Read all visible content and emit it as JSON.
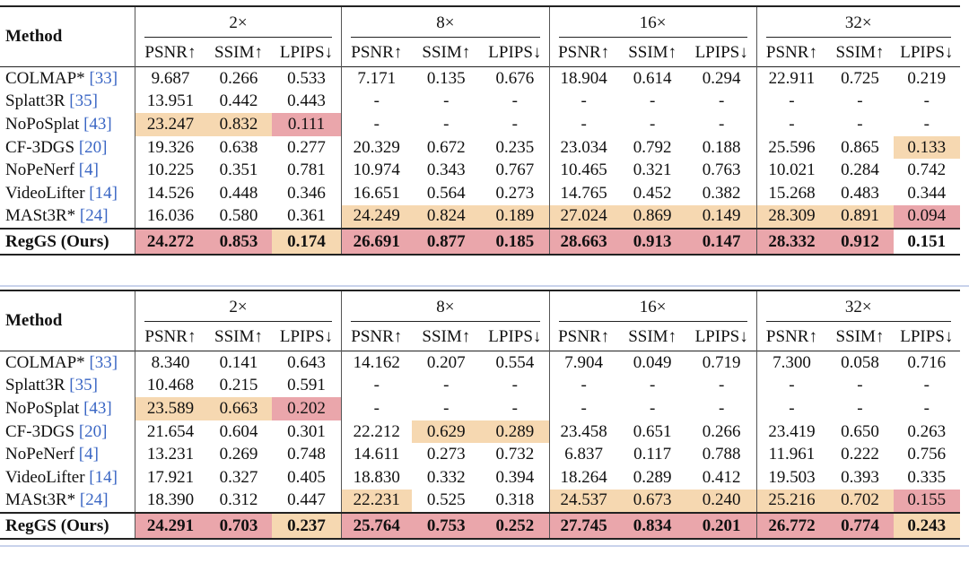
{
  "tables": [
    {
      "method_header": "Method",
      "scales": [
        "2×",
        "8×",
        "16×",
        "32×"
      ],
      "metrics": [
        "PSNR↑",
        "SSIM↑",
        "LPIPS↓"
      ],
      "rows": [
        {
          "name": "COLMAP* ",
          "cite": "[33]",
          "values": [
            "9.687",
            "0.266",
            "0.533",
            "7.171",
            "0.135",
            "0.676",
            "18.904",
            "0.614",
            "0.294",
            "22.911",
            "0.725",
            "0.219"
          ],
          "hl": [
            "",
            "",
            "",
            "",
            "",
            "",
            "",
            "",
            "",
            "",
            "",
            ""
          ]
        },
        {
          "name": "Splatt3R ",
          "cite": "[35]",
          "values": [
            "13.951",
            "0.442",
            "0.443",
            "-",
            "-",
            "-",
            "-",
            "-",
            "-",
            "-",
            "-",
            "-"
          ],
          "hl": [
            "",
            "",
            "",
            "",
            "",
            "",
            "",
            "",
            "",
            "",
            "",
            ""
          ]
        },
        {
          "name": "NoPoSplat ",
          "cite": "[43]",
          "values": [
            "23.247",
            "0.832",
            "0.111",
            "-",
            "-",
            "-",
            "-",
            "-",
            "-",
            "-",
            "-",
            "-"
          ],
          "hl": [
            "o",
            "o",
            "r",
            "",
            "",
            "",
            "",
            "",
            "",
            "",
            "",
            ""
          ]
        },
        {
          "name": "CF-3DGS ",
          "cite": "[20]",
          "values": [
            "19.326",
            "0.638",
            "0.277",
            "20.329",
            "0.672",
            "0.235",
            "23.034",
            "0.792",
            "0.188",
            "25.596",
            "0.865",
            "0.133"
          ],
          "hl": [
            "",
            "",
            "",
            "",
            "",
            "",
            "",
            "",
            "",
            "",
            "",
            "o"
          ]
        },
        {
          "name": "NoPeNerf ",
          "cite": "[4]",
          "values": [
            "10.225",
            "0.351",
            "0.781",
            "10.974",
            "0.343",
            "0.767",
            "10.465",
            "0.321",
            "0.763",
            "10.021",
            "0.284",
            "0.742"
          ],
          "hl": [
            "",
            "",
            "",
            "",
            "",
            "",
            "",
            "",
            "",
            "",
            "",
            ""
          ]
        },
        {
          "name": "VideoLifter ",
          "cite": "[14]",
          "values": [
            "14.526",
            "0.448",
            "0.346",
            "16.651",
            "0.564",
            "0.273",
            "14.765",
            "0.452",
            "0.382",
            "15.268",
            "0.483",
            "0.344"
          ],
          "hl": [
            "",
            "",
            "",
            "",
            "",
            "",
            "",
            "",
            "",
            "",
            "",
            ""
          ]
        },
        {
          "name": "MASt3R* ",
          "cite": "[24]",
          "values": [
            "16.036",
            "0.580",
            "0.361",
            "24.249",
            "0.824",
            "0.189",
            "27.024",
            "0.869",
            "0.149",
            "28.309",
            "0.891",
            "0.094"
          ],
          "hl": [
            "",
            "",
            "",
            "o",
            "o",
            "o",
            "o",
            "o",
            "o",
            "o",
            "o",
            "r"
          ]
        },
        {
          "name": "RegGS (Ours)",
          "cite": "",
          "values": [
            "24.272",
            "0.853",
            "0.174",
            "26.691",
            "0.877",
            "0.185",
            "28.663",
            "0.913",
            "0.147",
            "28.332",
            "0.912",
            "0.151"
          ],
          "hl": [
            "r",
            "r",
            "o",
            "r",
            "r",
            "r",
            "r",
            "r",
            "r",
            "r",
            "r",
            ""
          ]
        }
      ]
    },
    {
      "method_header": "Method",
      "scales": [
        "2×",
        "8×",
        "16×",
        "32×"
      ],
      "metrics": [
        "PSNR↑",
        "SSIM↑",
        "LPIPS↓"
      ],
      "rows": [
        {
          "name": "COLMAP* ",
          "cite": "[33]",
          "values": [
            "8.340",
            "0.141",
            "0.643",
            "14.162",
            "0.207",
            "0.554",
            "7.904",
            "0.049",
            "0.719",
            "7.300",
            "0.058",
            "0.716"
          ],
          "hl": [
            "",
            "",
            "",
            "",
            "",
            "",
            "",
            "",
            "",
            "",
            "",
            ""
          ]
        },
        {
          "name": "Splatt3R ",
          "cite": "[35]",
          "values": [
            "10.468",
            "0.215",
            "0.591",
            "-",
            "-",
            "-",
            "-",
            "-",
            "-",
            "-",
            "-",
            "-"
          ],
          "hl": [
            "",
            "",
            "",
            "",
            "",
            "",
            "",
            "",
            "",
            "",
            "",
            ""
          ]
        },
        {
          "name": "NoPoSplat ",
          "cite": "[43]",
          "values": [
            "23.589",
            "0.663",
            "0.202",
            "-",
            "-",
            "-",
            "-",
            "-",
            "-",
            "-",
            "-",
            "-"
          ],
          "hl": [
            "o",
            "o",
            "r",
            "",
            "",
            "",
            "",
            "",
            "",
            "",
            "",
            ""
          ]
        },
        {
          "name": "CF-3DGS ",
          "cite": "[20]",
          "values": [
            "21.654",
            "0.604",
            "0.301",
            "22.212",
            "0.629",
            "0.289",
            "23.458",
            "0.651",
            "0.266",
            "23.419",
            "0.650",
            "0.263"
          ],
          "hl": [
            "",
            "",
            "",
            "",
            "o",
            "o",
            "",
            "",
            "",
            "",
            "",
            ""
          ]
        },
        {
          "name": "NoPeNerf ",
          "cite": "[4]",
          "values": [
            "13.231",
            "0.269",
            "0.748",
            "14.611",
            "0.273",
            "0.732",
            "6.837",
            "0.117",
            "0.788",
            "11.961",
            "0.222",
            "0.756"
          ],
          "hl": [
            "",
            "",
            "",
            "",
            "",
            "",
            "",
            "",
            "",
            "",
            "",
            ""
          ]
        },
        {
          "name": "VideoLifter ",
          "cite": "[14]",
          "values": [
            "17.921",
            "0.327",
            "0.405",
            "18.830",
            "0.332",
            "0.394",
            "18.264",
            "0.289",
            "0.412",
            "19.503",
            "0.393",
            "0.335"
          ],
          "hl": [
            "",
            "",
            "",
            "",
            "",
            "",
            "",
            "",
            "",
            "",
            "",
            ""
          ]
        },
        {
          "name": "MASt3R* ",
          "cite": "[24]",
          "values": [
            "18.390",
            "0.312",
            "0.447",
            "22.231",
            "0.525",
            "0.318",
            "24.537",
            "0.673",
            "0.240",
            "25.216",
            "0.702",
            "0.155"
          ],
          "hl": [
            "",
            "",
            "",
            "o",
            "",
            "",
            "o",
            "o",
            "o",
            "o",
            "o",
            "r"
          ]
        },
        {
          "name": "RegGS (Ours)",
          "cite": "",
          "values": [
            "24.291",
            "0.703",
            "0.237",
            "25.764",
            "0.753",
            "0.252",
            "27.745",
            "0.834",
            "0.201",
            "26.772",
            "0.774",
            "0.243"
          ],
          "hl": [
            "r",
            "r",
            "o",
            "r",
            "r",
            "r",
            "r",
            "r",
            "r",
            "r",
            "r",
            "o"
          ]
        }
      ]
    }
  ]
}
